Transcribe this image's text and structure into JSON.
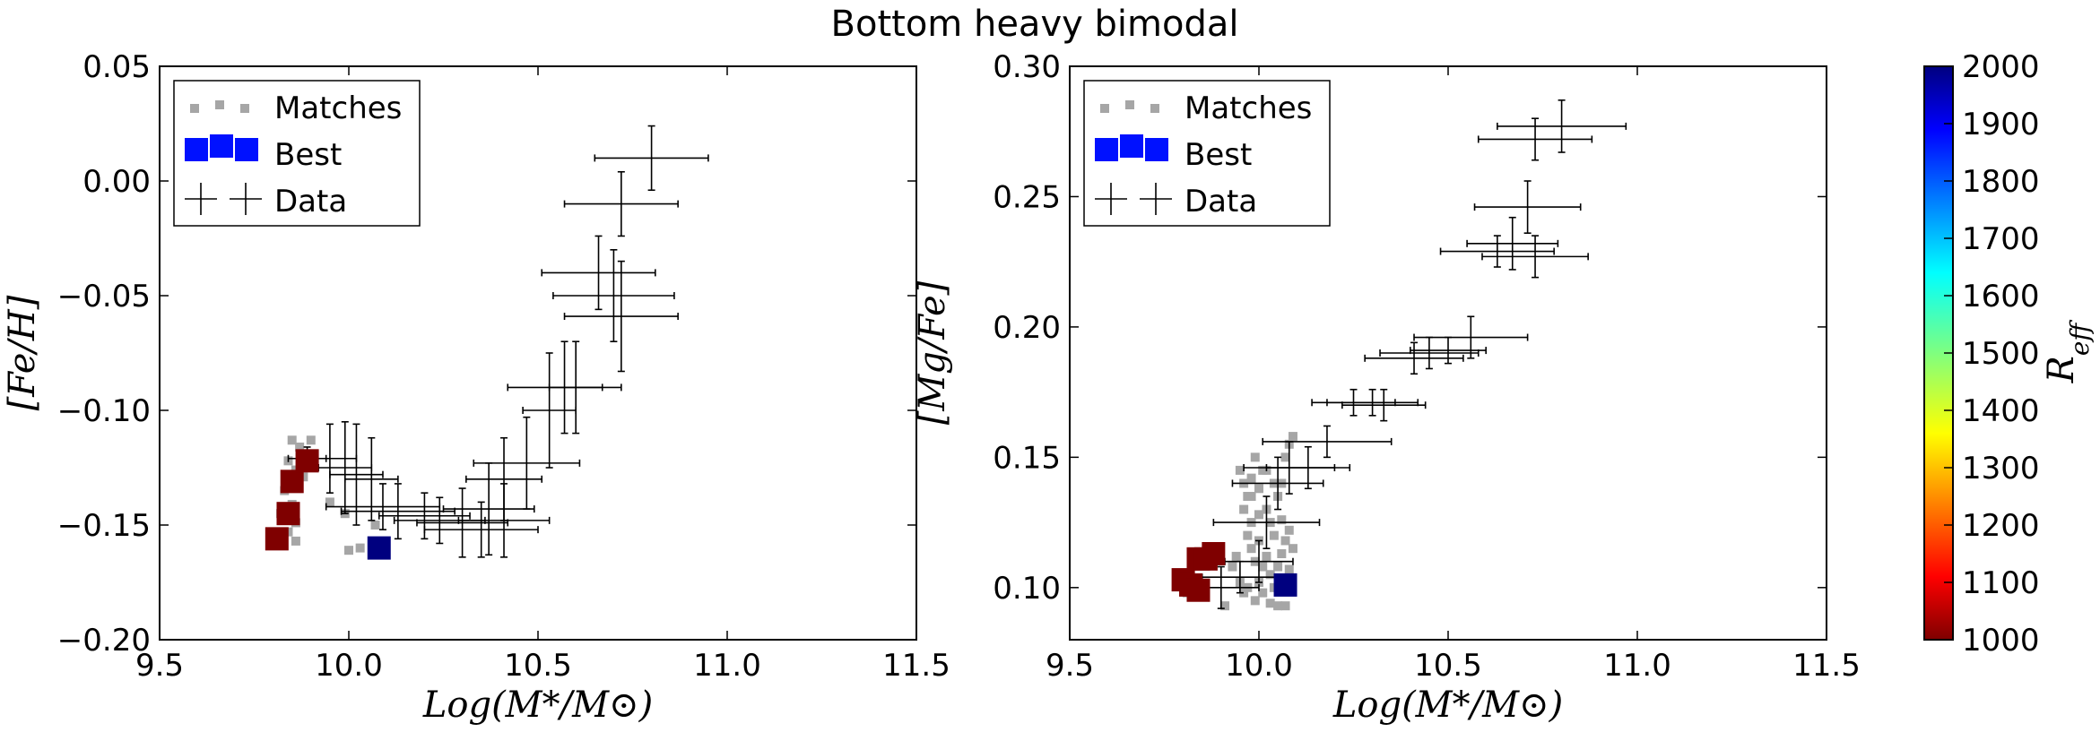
{
  "figure_title": "Bottom heavy bimodal",
  "colors": {
    "matches": "#a6a6a6",
    "best_high": "#00007f",
    "best_low": "#7f0000",
    "legend_best": "#0011ff",
    "errorbar": "#000000"
  },
  "chart_data": [
    {
      "type": "scatter",
      "panel": "left",
      "xlabel": "Log(M*/M⊙)",
      "ylabel": "[Fe/H]",
      "xlim": [
        9.5,
        11.5
      ],
      "ylim": [
        -0.2,
        0.05
      ],
      "xticks": [
        9.5,
        10.0,
        10.5,
        11.0,
        11.5
      ],
      "xtick_labels": [
        "9.5",
        "10.0",
        "10.5",
        "11.0",
        "11.5"
      ],
      "yticks": [
        -0.2,
        -0.15,
        -0.1,
        -0.05,
        0.0,
        0.05
      ],
      "ytick_labels": [
        "−0.20",
        "−0.15",
        "−0.10",
        "−0.05",
        "0.00",
        "0.05"
      ],
      "legend": [
        "Matches",
        "Best",
        "Data"
      ],
      "legend_location": "upper-left",
      "matches": [
        [
          9.85,
          -0.113
        ],
        [
          9.87,
          -0.116
        ],
        [
          9.88,
          -0.119
        ],
        [
          9.9,
          -0.113
        ],
        [
          9.84,
          -0.122
        ],
        [
          9.86,
          -0.126
        ],
        [
          9.83,
          -0.135
        ],
        [
          9.85,
          -0.141
        ],
        [
          9.86,
          -0.149
        ],
        [
          9.84,
          -0.153
        ],
        [
          9.86,
          -0.157
        ],
        [
          9.82,
          -0.145
        ],
        [
          9.88,
          -0.129
        ],
        [
          9.99,
          -0.145
        ],
        [
          10.0,
          -0.161
        ],
        [
          10.03,
          -0.16
        ],
        [
          10.07,
          -0.15
        ],
        [
          9.95,
          -0.14
        ]
      ],
      "best": [
        {
          "x": 9.81,
          "y": -0.156,
          "reff": 1000
        },
        {
          "x": 9.84,
          "y": -0.145,
          "reff": 1000
        },
        {
          "x": 9.85,
          "y": -0.131,
          "reff": 1000
        },
        {
          "x": 9.89,
          "y": -0.122,
          "reff": 1000
        },
        {
          "x": 10.08,
          "y": -0.16,
          "reff": 2000
        }
      ],
      "data": [
        {
          "x": 9.89,
          "y": -0.121,
          "xerr": 0.05,
          "yerr": 0.005
        },
        {
          "x": 9.95,
          "y": -0.121,
          "xerr": 0.07,
          "yerr": 0.015
        },
        {
          "x": 9.99,
          "y": -0.125,
          "xerr": 0.07,
          "yerr": 0.02
        },
        {
          "x": 10.02,
          "y": -0.128,
          "xerr": 0.07,
          "yerr": 0.022
        },
        {
          "x": 10.06,
          "y": -0.13,
          "xerr": 0.07,
          "yerr": 0.018
        },
        {
          "x": 10.09,
          "y": -0.142,
          "xerr": 0.15,
          "yerr": 0.01
        },
        {
          "x": 10.13,
          "y": -0.144,
          "xerr": 0.15,
          "yerr": 0.012
        },
        {
          "x": 10.2,
          "y": -0.146,
          "xerr": 0.12,
          "yerr": 0.01
        },
        {
          "x": 10.24,
          "y": -0.148,
          "xerr": 0.12,
          "yerr": 0.01
        },
        {
          "x": 10.3,
          "y": -0.149,
          "xerr": 0.12,
          "yerr": 0.015
        },
        {
          "x": 10.35,
          "y": -0.152,
          "xerr": 0.15,
          "yerr": 0.012
        },
        {
          "x": 10.37,
          "y": -0.143,
          "xerr": 0.12,
          "yerr": 0.02
        },
        {
          "x": 10.41,
          "y": -0.148,
          "xerr": 0.12,
          "yerr": 0.016
        },
        {
          "x": 10.41,
          "y": -0.13,
          "xerr": 0.1,
          "yerr": 0.018
        },
        {
          "x": 10.47,
          "y": -0.123,
          "xerr": 0.14,
          "yerr": 0.02
        },
        {
          "x": 10.53,
          "y": -0.1,
          "xerr": 0.07,
          "yerr": 0.025
        },
        {
          "x": 10.57,
          "y": -0.09,
          "xerr": 0.15,
          "yerr": 0.02
        },
        {
          "x": 10.6,
          "y": -0.09,
          "xerr": 0.07,
          "yerr": 0.02
        },
        {
          "x": 10.66,
          "y": -0.04,
          "xerr": 0.15,
          "yerr": 0.016
        },
        {
          "x": 10.7,
          "y": -0.05,
          "xerr": 0.16,
          "yerr": 0.02
        },
        {
          "x": 10.72,
          "y": -0.059,
          "xerr": 0.15,
          "yerr": 0.024
        },
        {
          "x": 10.72,
          "y": -0.01,
          "xerr": 0.15,
          "yerr": 0.014
        },
        {
          "x": 10.8,
          "y": 0.01,
          "xerr": 0.15,
          "yerr": 0.014
        }
      ]
    },
    {
      "type": "scatter",
      "panel": "right",
      "xlabel": "Log(M*/M⊙)",
      "ylabel": "[Mg/Fe]",
      "xlim": [
        9.5,
        11.5
      ],
      "ylim": [
        0.08,
        0.3
      ],
      "xticks": [
        9.5,
        10.0,
        10.5,
        11.0,
        11.5
      ],
      "xtick_labels": [
        "9.5",
        "10.0",
        "10.5",
        "11.0",
        "11.5"
      ],
      "yticks": [
        0.1,
        0.15,
        0.2,
        0.25,
        0.3
      ],
      "ytick_labels": [
        "0.10",
        "0.15",
        "0.20",
        "0.25",
        "0.30"
      ],
      "legend": [
        "Matches",
        "Best",
        "Data"
      ],
      "legend_location": "upper-left",
      "matches": [
        [
          9.95,
          0.145
        ],
        [
          9.96,
          0.14
        ],
        [
          9.97,
          0.135
        ],
        [
          9.98,
          0.142
        ],
        [
          9.99,
          0.15
        ],
        [
          10.0,
          0.138
        ],
        [
          10.01,
          0.145
        ],
        [
          10.02,
          0.13
        ],
        [
          10.03,
          0.125
        ],
        [
          10.04,
          0.12
        ],
        [
          10.05,
          0.135
        ],
        [
          10.06,
          0.14
        ],
        [
          10.07,
          0.15
        ],
        [
          10.08,
          0.155
        ],
        [
          10.09,
          0.158
        ],
        [
          9.96,
          0.13
        ],
        [
          9.97,
          0.12
        ],
        [
          9.98,
          0.115
        ],
        [
          9.99,
          0.11
        ],
        [
          10.0,
          0.118
        ],
        [
          10.01,
          0.108
        ],
        [
          10.02,
          0.112
        ],
        [
          10.03,
          0.105
        ],
        [
          10.04,
          0.1
        ],
        [
          10.05,
          0.108
        ],
        [
          10.06,
          0.113
        ],
        [
          10.07,
          0.118
        ],
        [
          10.08,
          0.122
        ],
        [
          9.97,
          0.1
        ],
        [
          9.99,
          0.095
        ],
        [
          10.01,
          0.098
        ],
        [
          10.03,
          0.094
        ],
        [
          10.05,
          0.093
        ],
        [
          10.07,
          0.093
        ],
        [
          9.91,
          0.093
        ],
        [
          9.95,
          0.102
        ],
        [
          9.98,
          0.125
        ],
        [
          10.0,
          0.128
        ],
        [
          9.94,
          0.112
        ],
        [
          10.06,
          0.126
        ],
        [
          10.02,
          0.145
        ],
        [
          10.04,
          0.14
        ],
        [
          9.98,
          0.135
        ],
        [
          10.0,
          0.102
        ],
        [
          10.08,
          0.107
        ],
        [
          9.93,
          0.108
        ],
        [
          9.96,
          0.098
        ],
        [
          10.09,
          0.115
        ],
        [
          9.82,
          0.101
        ],
        [
          9.81,
          0.098
        ]
      ],
      "best": [
        {
          "x": 9.8,
          "y": 0.103,
          "reff": 1000
        },
        {
          "x": 9.82,
          "y": 0.101,
          "reff": 1000
        },
        {
          "x": 9.84,
          "y": 0.099,
          "reff": 1000
        },
        {
          "x": 9.84,
          "y": 0.111,
          "reff": 1000
        },
        {
          "x": 9.86,
          "y": 0.111,
          "reff": 1000
        },
        {
          "x": 9.88,
          "y": 0.113,
          "reff": 1000
        },
        {
          "x": 10.07,
          "y": 0.101,
          "reff": 2000
        }
      ],
      "data": [
        {
          "x": 9.9,
          "y": 0.1,
          "xerr": 0.1,
          "yerr": 0.008
        },
        {
          "x": 9.95,
          "y": 0.104,
          "xerr": 0.1,
          "yerr": 0.006
        },
        {
          "x": 10.0,
          "y": 0.11,
          "xerr": 0.09,
          "yerr": 0.008
        },
        {
          "x": 10.02,
          "y": 0.125,
          "xerr": 0.14,
          "yerr": 0.01
        },
        {
          "x": 10.05,
          "y": 0.14,
          "xerr": 0.12,
          "yerr": 0.01
        },
        {
          "x": 10.08,
          "y": 0.146,
          "xerr": 0.12,
          "yerr": 0.01
        },
        {
          "x": 10.13,
          "y": 0.146,
          "xerr": 0.11,
          "yerr": 0.008
        },
        {
          "x": 10.18,
          "y": 0.156,
          "xerr": 0.17,
          "yerr": 0.006
        },
        {
          "x": 10.25,
          "y": 0.171,
          "xerr": 0.11,
          "yerr": 0.005
        },
        {
          "x": 10.3,
          "y": 0.171,
          "xerr": 0.12,
          "yerr": 0.005
        },
        {
          "x": 10.33,
          "y": 0.17,
          "xerr": 0.11,
          "yerr": 0.006
        },
        {
          "x": 10.41,
          "y": 0.188,
          "xerr": 0.13,
          "yerr": 0.006
        },
        {
          "x": 10.45,
          "y": 0.19,
          "xerr": 0.13,
          "yerr": 0.006
        },
        {
          "x": 10.5,
          "y": 0.191,
          "xerr": 0.1,
          "yerr": 0.005
        },
        {
          "x": 10.56,
          "y": 0.196,
          "xerr": 0.15,
          "yerr": 0.008
        },
        {
          "x": 10.63,
          "y": 0.229,
          "xerr": 0.15,
          "yerr": 0.006
        },
        {
          "x": 10.67,
          "y": 0.232,
          "xerr": 0.12,
          "yerr": 0.01
        },
        {
          "x": 10.71,
          "y": 0.246,
          "xerr": 0.14,
          "yerr": 0.01
        },
        {
          "x": 10.73,
          "y": 0.227,
          "xerr": 0.14,
          "yerr": 0.008
        },
        {
          "x": 10.73,
          "y": 0.272,
          "xerr": 0.15,
          "yerr": 0.008
        },
        {
          "x": 10.8,
          "y": 0.277,
          "xerr": 0.17,
          "yerr": 0.01
        }
      ]
    }
  ],
  "colorbar": {
    "label": "R_eff",
    "min": 1000,
    "max": 2000,
    "ticks": [
      1000,
      1100,
      1200,
      1300,
      1400,
      1500,
      1600,
      1700,
      1800,
      1900,
      2000
    ],
    "tick_labels": [
      "1000",
      "1100",
      "1200",
      "1300",
      "1400",
      "1500",
      "1600",
      "1700",
      "1800",
      "1900",
      "2000"
    ],
    "colormap": [
      "#7f0000",
      "#ff0000",
      "#ff7f00",
      "#ffff00",
      "#7fff7f",
      "#00ffff",
      "#007fff",
      "#0000ff",
      "#00007f"
    ]
  }
}
